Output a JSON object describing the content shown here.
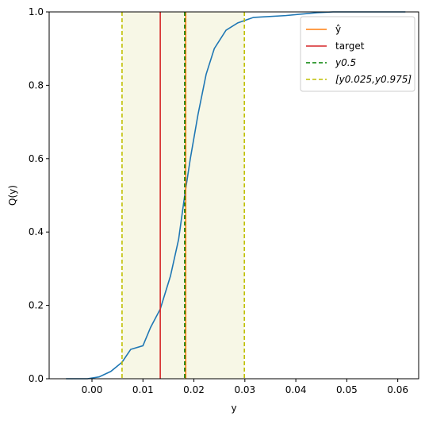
{
  "chart_data": {
    "type": "line",
    "xlabel": "y",
    "ylabel": "Q(y)",
    "xlim": [
      -0.0084,
      0.0641
    ],
    "ylim": [
      0,
      1
    ],
    "xticks": [
      {
        "value": 0.0,
        "label": "0.00"
      },
      {
        "value": 0.01,
        "label": "0.01"
      },
      {
        "value": 0.02,
        "label": "0.02"
      },
      {
        "value": 0.03,
        "label": "0.03"
      },
      {
        "value": 0.04,
        "label": "0.04"
      },
      {
        "value": 0.05,
        "label": "0.05"
      },
      {
        "value": 0.06,
        "label": "0.06"
      }
    ],
    "yticks": [
      {
        "value": 0,
        "label": "0.0"
      },
      {
        "value": 0.2,
        "label": "0.2"
      },
      {
        "value": 0.4,
        "label": "0.4"
      },
      {
        "value": 0.6,
        "label": "0.6"
      },
      {
        "value": 0.8,
        "label": "0.8"
      },
      {
        "value": 1,
        "label": "1.0"
      }
    ],
    "x": [
      -0.0051,
      -0.0009,
      0.0014,
      0.0037,
      0.0059,
      0.0076,
      0.01,
      0.0115,
      0.0134,
      0.0154,
      0.017,
      0.0182,
      0.0193,
      0.0208,
      0.0224,
      0.024,
      0.0263,
      0.0286,
      0.0317,
      0.038,
      0.0442,
      0.0473,
      0.0615
    ],
    "series": [
      {
        "color": "#1f77b4",
        "values": [
          0,
          0,
          0.005,
          0.02,
          0.045,
          0.08,
          0.09,
          0.14,
          0.19,
          0.28,
          0.38,
          0.5,
          0.6,
          0.72,
          0.83,
          0.9,
          0.95,
          0.97,
          0.985,
          0.99,
          0.998,
          1,
          1
        ]
      }
    ],
    "vlines": [
      {
        "name": "ŷ",
        "color": "#ff7f0e",
        "value": 0.0184,
        "dashed": false
      },
      {
        "name": "target",
        "color": "#d62728",
        "value": 0.0134,
        "dashed": false
      },
      {
        "name": "y0.5",
        "color": "#008000",
        "value": 0.0182,
        "dashed": true
      },
      {
        "name": "[y0.025,y0.975]",
        "color": "#bfbf00",
        "value": 0.0059,
        "dashed": true
      },
      {
        "color": "#bfbf00",
        "value": 0.0299,
        "dashed": true
      }
    ],
    "shade_color": "#f7f7e6",
    "legend": "upper right"
  }
}
